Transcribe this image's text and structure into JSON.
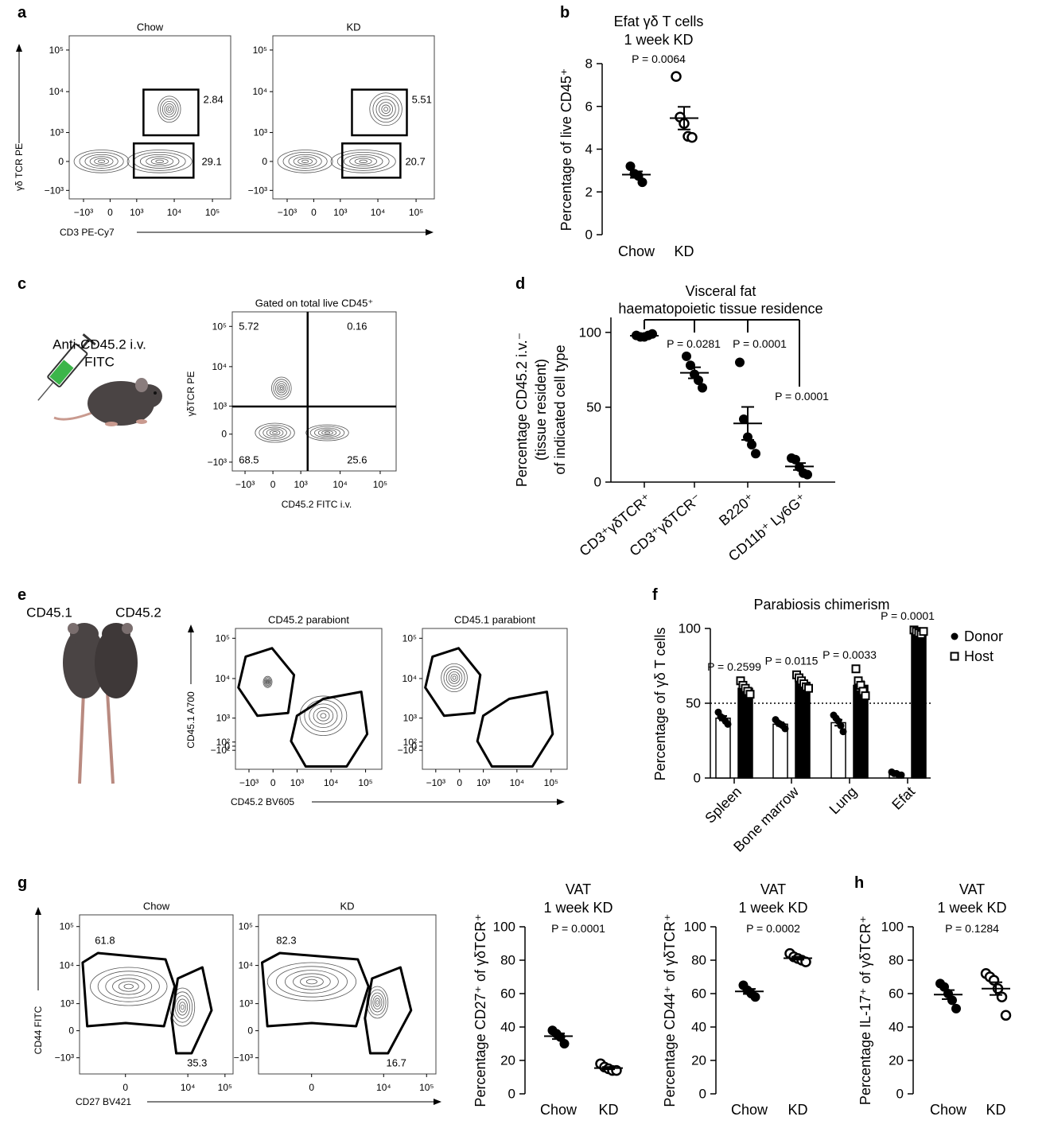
{
  "panel_labels": [
    "a",
    "b",
    "c",
    "d",
    "e",
    "f",
    "g",
    "h"
  ],
  "illustrations": {
    "c": [
      "Anti-CD45.2 i.v.",
      "FITC"
    ],
    "e": [
      "CD45.1",
      "CD45.2"
    ]
  },
  "chart_data": [
    {
      "type": "flow",
      "title": "Chow",
      "ylabel": "γδ TCR PE",
      "xlabel": "CD3 PE-Cy7",
      "xlim": [
        -2450,
        300000
      ],
      "ylim": [
        -1640,
        220000
      ],
      "xticks": [
        {
          "value": -1000,
          "label": "−10³"
        },
        0,
        {
          "value": 1000,
          "label": "10³"
        },
        {
          "value": 10000,
          "label": "10⁴"
        },
        {
          "value": 100000,
          "label": "10⁵"
        }
      ],
      "yticks": [
        {
          "value": -1000,
          "label": "−10³"
        },
        0,
        {
          "value": 1000,
          "label": "10³"
        },
        {
          "value": 10000,
          "label": "10⁴"
        },
        {
          "value": 100000,
          "label": "10⁵"
        }
      ],
      "gate_values": [
        2.84,
        29.1
      ]
    },
    {
      "type": "flow",
      "title": "KD",
      "xlim": [
        -2450,
        300000
      ],
      "ylim": [
        -1640,
        220000
      ],
      "xticks": [
        {
          "value": -1000,
          "label": "−10³"
        },
        0,
        {
          "value": 1000,
          "label": "10³"
        },
        {
          "value": 10000,
          "label": "10⁴"
        },
        {
          "value": 100000,
          "label": "10⁵"
        }
      ],
      "yticks": [
        {
          "value": -1000,
          "label": "−10³"
        },
        0,
        {
          "value": 1000,
          "label": "10³"
        },
        {
          "value": 10000,
          "label": "10⁴"
        },
        {
          "value": 100000,
          "label": "10⁵"
        }
      ],
      "gate_values": [
        5.51,
        20.7
      ]
    },
    {
      "type": "dot",
      "title": [
        "Efat γδ T cells",
        "1 week KD"
      ],
      "p_values": [
        "P = 0.0064"
      ],
      "ylabel": [
        "Percentage of live CD45⁺"
      ],
      "categories": [
        "Chow",
        "KD"
      ],
      "points": [
        [
          3.2,
          2.85,
          2.75,
          2.45
        ],
        [
          7.4,
          5.5,
          5.2,
          4.6,
          4.55
        ]
      ],
      "means": [
        2.81,
        5.45
      ],
      "errors": [
        0.15,
        0.53
      ],
      "markers": [
        "filled",
        "open"
      ],
      "ylim": [
        0,
        8
      ],
      "yticks": [
        0,
        2,
        4,
        6,
        8
      ]
    },
    {
      "type": "flow",
      "title": "Gated on total live CD45⁺",
      "ylabel": "γδTCR PE",
      "xlabel": "CD45.2 FITC i.v.",
      "xlim": [
        -2150,
        250000
      ],
      "ylim": [
        -1700,
        230000
      ],
      "xticks": [
        {
          "value": -1000,
          "label": "−10³"
        },
        0,
        {
          "value": 1000,
          "label": "10³"
        },
        {
          "value": 10000,
          "label": "10⁴"
        },
        {
          "value": 100000,
          "label": "10⁵"
        }
      ],
      "yticks": [
        {
          "value": -1000,
          "label": "−10³"
        },
        0,
        {
          "value": 1000,
          "label": "10³"
        },
        {
          "value": 10000,
          "label": "10⁴"
        },
        {
          "value": 100000,
          "label": "10⁵"
        }
      ],
      "gate_values": [
        5.72,
        0.16,
        68.5,
        25.6
      ]
    },
    {
      "type": "dot",
      "title": [
        "Visceral fat",
        "haematopoietic tissue residence"
      ],
      "p_values": [
        "P = 0.0281",
        "P = 0.0001",
        "P = 0.0001"
      ],
      "ylabel": [
        "Percentage CD45.2 i.v.⁻",
        "(tissue resident)",
        "of indicated cell type"
      ],
      "categories": [
        "CD3⁺γδTCR⁺",
        "CD3⁺γδTCR⁻",
        "B220⁺",
        "CD11b⁺ Ly6G⁺"
      ],
      "points": [
        [
          98,
          97,
          97,
          98,
          99
        ],
        [
          84,
          78,
          72,
          68,
          63
        ],
        [
          80,
          42,
          30,
          25,
          19
        ],
        [
          16,
          15,
          10,
          6,
          5
        ]
      ],
      "means": [
        97.8,
        73,
        39.2,
        10.4
      ],
      "errors": [
        0.4,
        3.7,
        11,
        2.3
      ],
      "markers": [
        "filled",
        "filled",
        "filled",
        "filled"
      ],
      "ylim": [
        0,
        110
      ],
      "yticks": [
        0,
        50,
        100
      ],
      "x_axis": true
    },
    {
      "type": "flow",
      "title": "CD45.2 parabiont",
      "ylabel": "CD45.1 A700",
      "xlabel": "CD45.2 BV605",
      "xlim": [
        -2550,
        295000
      ],
      "ylim": [
        -730,
        175000
      ],
      "xticks": [
        {
          "value": -1000,
          "label": "−10³"
        },
        0,
        {
          "value": 1000,
          "label": "10³"
        },
        {
          "value": 10000,
          "label": "10⁴"
        },
        {
          "value": 100000,
          "label": "10⁵"
        }
      ],
      "yticks": [
        {
          "value": -100,
          "label": "−10²"
        },
        0,
        {
          "value": 100,
          "label": "10²"
        },
        {
          "value": 1000,
          "label": "10³"
        },
        {
          "value": 10000,
          "label": "10⁴"
        },
        {
          "value": 100000,
          "label": "10⁵"
        }
      ]
    },
    {
      "type": "flow",
      "title": "CD45.1 parabiont",
      "xlim": [
        -2550,
        295000
      ],
      "ylim": [
        -730,
        175000
      ],
      "xticks": [
        {
          "value": -1000,
          "label": "−10³"
        },
        0,
        {
          "value": 1000,
          "label": "10³"
        },
        {
          "value": 10000,
          "label": "10⁴"
        },
        {
          "value": 100000,
          "label": "10⁵"
        }
      ],
      "yticks": [
        {
          "value": -100,
          "label": "−10²"
        },
        0,
        {
          "value": 100,
          "label": "10²"
        },
        {
          "value": 1000,
          "label": "10³"
        },
        {
          "value": 10000,
          "label": "10⁴"
        },
        {
          "value": 100000,
          "label": "10⁵"
        }
      ]
    },
    {
      "type": "bar",
      "title": [
        "Parabiosis chimerism"
      ],
      "ylabel": [
        "Percentage of γδ T cells"
      ],
      "categories": [
        "Spleen",
        "Bone marrow",
        "Lung",
        "Efat"
      ],
      "p_values": [
        "P = 0.2599",
        "P = 0.0115",
        "P = 0.0033",
        "P = 0.0001"
      ],
      "series": [
        {
          "name": "Donor",
          "color": "#ffffff",
          "marker": "dot",
          "values": [
            40,
            36,
            37,
            3
          ],
          "errors": [
            1.5,
            1.2,
            2,
            0.5
          ],
          "points": [
            [
              44,
              41,
              40,
              38,
              36
            ],
            [
              39,
              37,
              36,
              35,
              33
            ],
            [
              42,
              40,
              38,
              35,
              31
            ],
            [
              4,
              3,
              3,
              2,
              2
            ]
          ]
        },
        {
          "name": "Host",
          "color": "#000000",
          "marker": "square",
          "values": [
            60,
            64,
            62,
            98
          ],
          "errors": [
            1.6,
            1.4,
            3,
            0.5
          ],
          "points": [
            [
              65,
              62,
              60,
              58,
              56
            ],
            [
              69,
              67,
              65,
              63,
              61,
              60
            ],
            [
              73,
              65,
              62,
              58,
              55
            ],
            [
              99,
              98,
              97,
              96,
              98
            ]
          ]
        }
      ],
      "reference_line": 50,
      "ylim": [
        0,
        100
      ],
      "yticks": [
        0,
        50,
        100
      ],
      "x_axis": true
    },
    {
      "type": "flow",
      "title": "Chow",
      "ylabel": "CD44 FITC",
      "xlabel": "CD27 BV421",
      "xlim": [
        -3600,
        165000
      ],
      "ylim": [
        -2700,
        200000
      ],
      "xticks": [
        0,
        {
          "value": 10000,
          "label": "10⁴"
        },
        {
          "value": 100000,
          "label": "10⁵"
        }
      ],
      "yticks": [
        {
          "value": -1000,
          "label": "−10³"
        },
        0,
        {
          "value": 1000,
          "label": "10³"
        },
        {
          "value": 10000,
          "label": "10⁴"
        },
        {
          "value": 100000,
          "label": "10⁵"
        }
      ],
      "gate_values": [
        61.8,
        35.3
      ]
    },
    {
      "type": "flow",
      "title": "KD",
      "xlim": [
        -3600,
        165000
      ],
      "ylim": [
        -2700,
        200000
      ],
      "xticks": [
        0,
        {
          "value": 10000,
          "label": "10⁴"
        },
        {
          "value": 100000,
          "label": "10⁵"
        }
      ],
      "yticks": [
        {
          "value": -1000,
          "label": "−10³"
        },
        0,
        {
          "value": 1000,
          "label": "10³"
        },
        {
          "value": 10000,
          "label": "10⁴"
        },
        {
          "value": 100000,
          "label": "10⁵"
        }
      ],
      "gate_values": [
        82.3,
        16.7
      ]
    },
    {
      "type": "dot",
      "title": [
        "VAT",
        "1 week KD"
      ],
      "p_values": [
        "P = 0.0001"
      ],
      "ylabel": [
        "Percentage CD27⁺ of γδTCR⁺"
      ],
      "categories": [
        "Chow",
        "KD"
      ],
      "points": [
        [
          38,
          36,
          34,
          30
        ],
        [
          18,
          16,
          15,
          14,
          14
        ]
      ],
      "means": [
        34.5,
        15.4
      ],
      "errors": [
        1.7,
        0.7
      ],
      "markers": [
        "filled",
        "open"
      ],
      "ylim": [
        0,
        100
      ],
      "yticks": [
        0,
        20,
        40,
        60,
        80,
        100
      ]
    },
    {
      "type": "dot",
      "title": [
        "VAT",
        "1 week KD"
      ],
      "p_values": [
        "P = 0.0002"
      ],
      "ylabel": [
        "Percentage CD44⁺ of γδTCR⁺"
      ],
      "categories": [
        "Chow",
        "KD"
      ],
      "points": [
        [
          65,
          62,
          60,
          58
        ],
        [
          84,
          82,
          81,
          80,
          79
        ]
      ],
      "means": [
        61.3,
        81.2
      ],
      "errors": [
        1.5,
        0.9
      ],
      "markers": [
        "filled",
        "open"
      ],
      "ylim": [
        0,
        100
      ],
      "yticks": [
        0,
        20,
        40,
        60,
        80,
        100
      ]
    },
    {
      "type": "dot",
      "title": [
        "VAT",
        "1 week KD"
      ],
      "p_values": [
        "P = 0.1284"
      ],
      "ylabel": [
        "Percentage IL-17⁺ of γδTCR⁺"
      ],
      "categories": [
        "Chow",
        "KD"
      ],
      "points": [
        [
          66,
          64,
          60,
          56,
          51
        ],
        [
          72,
          70,
          68,
          63,
          58,
          47
        ]
      ],
      "means": [
        59.4,
        63
      ],
      "errors": [
        2.7,
        3.8
      ],
      "markers": [
        "filled",
        "open"
      ],
      "ylim": [
        0,
        100
      ],
      "yticks": [
        0,
        20,
        40,
        60,
        80,
        100
      ]
    }
  ]
}
